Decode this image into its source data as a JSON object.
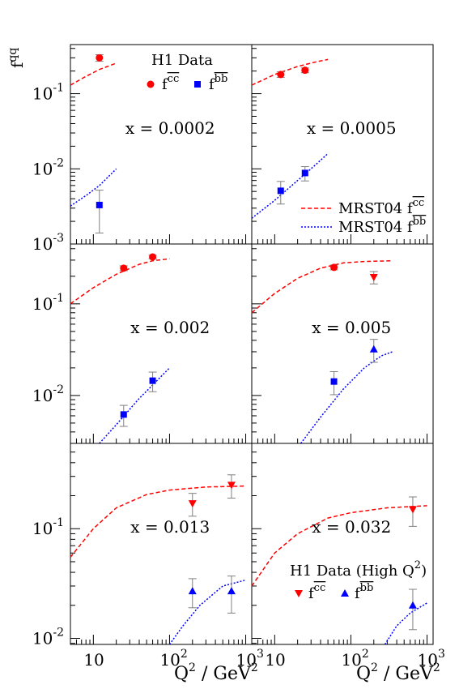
{
  "chart_data": {
    "type": "scatter",
    "y_axis_label": {
      "base": "f",
      "sup": "qq"
    },
    "x_axis_label": {
      "left": "Q",
      "mid": " / GeV"
    },
    "x_scale": "log",
    "y_scale": "log",
    "xlim": [
      5,
      1200
    ],
    "colors": {
      "cc": "#ff0000",
      "bb": "#0000ff",
      "axis": "#000000",
      "error": "#808080"
    },
    "legend_h1": {
      "title": "H1 Data",
      "cc_label": {
        "base": "f",
        "sup": "cc"
      },
      "bb_label": {
        "base": "f",
        "sup": "bb"
      },
      "marker_cc": "circle",
      "marker_bb": "square"
    },
    "legend_mrst": {
      "cc_label": {
        "base": "MRST04 f",
        "sup": "cc"
      },
      "bb_label": {
        "base": "MRST04 f",
        "sup": "bb"
      },
      "style_cc": "dashed",
      "style_bb": "dotted"
    },
    "legend_high": {
      "title": "H1 Data (High Q",
      "title_tail": ")",
      "cc_label": {
        "base": "f",
        "sup": "cc"
      },
      "bb_label": {
        "base": "f",
        "sup": "bb"
      },
      "marker_cc": "triangle-down",
      "marker_bb": "triangle-up"
    },
    "panels": [
      {
        "label": "x = 0.0002",
        "y_ticks": [
          {
            "base": "10",
            "exp": "-1",
            "value": 0.1
          },
          {
            "base": "10",
            "exp": "-2",
            "value": 0.01
          },
          {
            "base": "10",
            "exp": "-3",
            "value": 0.001
          }
        ],
        "ylim": [
          0.001,
          0.45
        ],
        "x_ticks": [],
        "cc_data": [
          {
            "x": 12,
            "y": 0.3,
            "err": 0.03
          }
        ],
        "bb_data": [
          {
            "x": 12,
            "y": 0.0033,
            "err": 0.0019
          }
        ],
        "cc_curve": [
          [
            5,
            0.13
          ],
          [
            8,
            0.17
          ],
          [
            12,
            0.21
          ],
          [
            20,
            0.255
          ]
        ],
        "bb_curve": [
          [
            5,
            0.0032
          ],
          [
            8,
            0.0044
          ],
          [
            12,
            0.006
          ],
          [
            20,
            0.01
          ]
        ]
      },
      {
        "label": "x = 0.0005",
        "y_ticks": [],
        "ylim": [
          0.001,
          0.45
        ],
        "x_ticks": [],
        "cc_data": [
          {
            "x": 12,
            "y": 0.18,
            "err": 0.015
          },
          {
            "x": 25,
            "y": 0.205,
            "err": 0.015
          }
        ],
        "bb_data": [
          {
            "x": 12,
            "y": 0.0051,
            "err": 0.0017
          },
          {
            "x": 25,
            "y": 0.0088,
            "err": 0.0019
          }
        ],
        "cc_curve": [
          [
            5,
            0.13
          ],
          [
            10,
            0.18
          ],
          [
            20,
            0.23
          ],
          [
            35,
            0.265
          ],
          [
            50,
            0.285
          ]
        ],
        "bb_curve": [
          [
            5,
            0.0022
          ],
          [
            10,
            0.0038
          ],
          [
            20,
            0.007
          ],
          [
            35,
            0.0115
          ],
          [
            50,
            0.016
          ]
        ]
      },
      {
        "label": "x = 0.002",
        "y_ticks": [
          {
            "base": "10",
            "exp": "-1",
            "value": 0.1
          },
          {
            "base": "10",
            "exp": "-2",
            "value": 0.01
          }
        ],
        "ylim": [
          0.003,
          0.45
        ],
        "x_ticks": [],
        "cc_data": [
          {
            "x": 25,
            "y": 0.245,
            "err": 0.015
          },
          {
            "x": 60,
            "y": 0.325,
            "err": 0.015
          }
        ],
        "bb_data": [
          {
            "x": 25,
            "y": 0.0062,
            "err": 0.0016
          },
          {
            "x": 60,
            "y": 0.0145,
            "err": 0.0035
          }
        ],
        "cc_curve": [
          [
            5,
            0.1
          ],
          [
            10,
            0.15
          ],
          [
            20,
            0.21
          ],
          [
            40,
            0.27
          ],
          [
            60,
            0.295
          ],
          [
            100,
            0.31
          ]
        ],
        "bb_curve": [
          [
            12,
            0.003
          ],
          [
            20,
            0.0048
          ],
          [
            40,
            0.0093
          ],
          [
            60,
            0.013
          ],
          [
            100,
            0.02
          ]
        ]
      },
      {
        "label": "x = 0.005",
        "y_ticks": [],
        "ylim": [
          0.003,
          0.45
        ],
        "x_ticks": [],
        "cc_data": [
          {
            "x": 60,
            "y": 0.25,
            "err": 0.015
          },
          {
            "x": 200,
            "y": 0.195,
            "err": 0.03
          }
        ],
        "bb_data": [
          {
            "x": 60,
            "y": 0.0142,
            "err": 0.004
          },
          {
            "x": 200,
            "y": 0.032,
            "err": 0.009
          }
        ],
        "bb_marker": [
          "square",
          "triangle-up"
        ],
        "cc_marker": [
          "circle",
          "triangle-down"
        ],
        "cc_curve": [
          [
            5,
            0.08
          ],
          [
            10,
            0.13
          ],
          [
            20,
            0.19
          ],
          [
            40,
            0.245
          ],
          [
            80,
            0.28
          ],
          [
            150,
            0.29
          ],
          [
            350,
            0.295
          ]
        ],
        "bb_curve": [
          [
            22,
            0.003
          ],
          [
            40,
            0.0058
          ],
          [
            80,
            0.0118
          ],
          [
            150,
            0.02
          ],
          [
            250,
            0.027
          ],
          [
            350,
            0.03
          ]
        ]
      },
      {
        "label": "x = 0.013",
        "y_ticks": [
          {
            "base": "10",
            "exp": "-1",
            "value": 0.1
          },
          {
            "base": "10",
            "exp": "-2",
            "value": 0.01
          }
        ],
        "ylim": [
          0.0088,
          0.6
        ],
        "x_ticks": [
          {
            "base": "10",
            "exp": "",
            "value": 10
          },
          {
            "base": "10",
            "exp": "2",
            "value": 100
          },
          {
            "base": "10",
            "exp": "3",
            "value": 1000
          }
        ],
        "cc_data": [
          {
            "x": 200,
            "y": 0.17,
            "err": 0.04
          },
          {
            "x": 650,
            "y": 0.25,
            "err": 0.06
          }
        ],
        "bb_data": [
          {
            "x": 200,
            "y": 0.027,
            "err": 0.008
          },
          {
            "x": 650,
            "y": 0.027,
            "err": 0.01
          }
        ],
        "cc_curve": [
          [
            5,
            0.055
          ],
          [
            10,
            0.1
          ],
          [
            20,
            0.155
          ],
          [
            50,
            0.205
          ],
          [
            100,
            0.225
          ],
          [
            300,
            0.24
          ],
          [
            1000,
            0.245
          ]
        ],
        "bb_curve": [
          [
            100,
            0.0088
          ],
          [
            150,
            0.013
          ],
          [
            250,
            0.02
          ],
          [
            500,
            0.03
          ],
          [
            1000,
            0.034
          ]
        ]
      },
      {
        "label": "x = 0.032",
        "y_ticks": [],
        "ylim": [
          0.0088,
          0.6
        ],
        "x_ticks": [
          {
            "base": "10",
            "exp": "",
            "value": 10
          },
          {
            "base": "10",
            "exp": "2",
            "value": 100
          },
          {
            "base": "10",
            "exp": "3",
            "value": 1000
          }
        ],
        "cc_data": [
          {
            "x": 650,
            "y": 0.15,
            "err": 0.045
          }
        ],
        "bb_data": [
          {
            "x": 650,
            "y": 0.02,
            "err": 0.008
          }
        ],
        "cc_marker": [
          "triangle-down"
        ],
        "bb_marker": [
          "triangle-up"
        ],
        "cc_curve": [
          [
            5,
            0.03
          ],
          [
            10,
            0.06
          ],
          [
            20,
            0.09
          ],
          [
            50,
            0.125
          ],
          [
            100,
            0.14
          ],
          [
            300,
            0.155
          ],
          [
            1000,
            0.162
          ]
        ],
        "bb_curve": [
          [
            280,
            0.0088
          ],
          [
            400,
            0.013
          ],
          [
            600,
            0.017
          ],
          [
            1000,
            0.021
          ]
        ]
      }
    ]
  }
}
